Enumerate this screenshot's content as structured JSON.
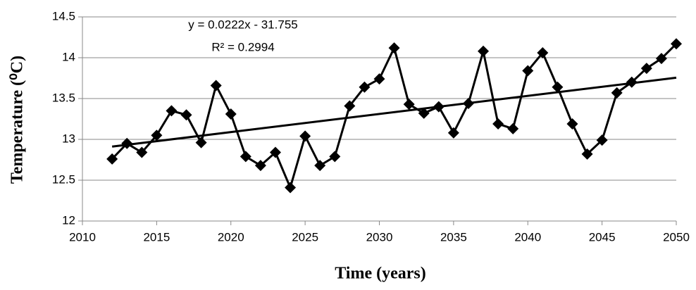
{
  "chart_data": {
    "type": "line",
    "x_label": "Time (years)",
    "y_label": "Temperature (⁰C)",
    "x": [
      2012,
      2013,
      2014,
      2015,
      2016,
      2017,
      2018,
      2019,
      2020,
      2021,
      2022,
      2023,
      2024,
      2025,
      2026,
      2027,
      2028,
      2029,
      2030,
      2031,
      2032,
      2033,
      2034,
      2035,
      2036,
      2037,
      2038,
      2039,
      2040,
      2041,
      2042,
      2043,
      2044,
      2045,
      2046,
      2047,
      2048,
      2049,
      2050
    ],
    "values": [
      12.76,
      12.95,
      12.84,
      13.05,
      13.35,
      13.3,
      12.96,
      13.66,
      13.31,
      12.79,
      12.68,
      12.84,
      12.41,
      13.04,
      12.68,
      12.79,
      13.41,
      13.64,
      13.74,
      14.12,
      13.43,
      13.32,
      13.4,
      13.08,
      13.44,
      14.08,
      13.19,
      13.13,
      13.84,
      14.06,
      13.64,
      13.19,
      12.82,
      12.99,
      13.57,
      13.7,
      13.87,
      13.99,
      14.17
    ],
    "color": "#000000",
    "xlim": [
      2010,
      2050
    ],
    "xticks": [
      2010,
      2015,
      2020,
      2025,
      2030,
      2035,
      2040,
      2045,
      2050
    ],
    "ylim": [
      12,
      14.5
    ],
    "yticks": [
      12,
      12.5,
      13,
      13.5,
      14,
      14.5
    ],
    "grid": true,
    "trendline": {
      "equation": "y = 0.0222x - 31.755",
      "slope": 0.0222,
      "intercept": -31.755,
      "r_squared": "R² = 0.2994"
    }
  }
}
